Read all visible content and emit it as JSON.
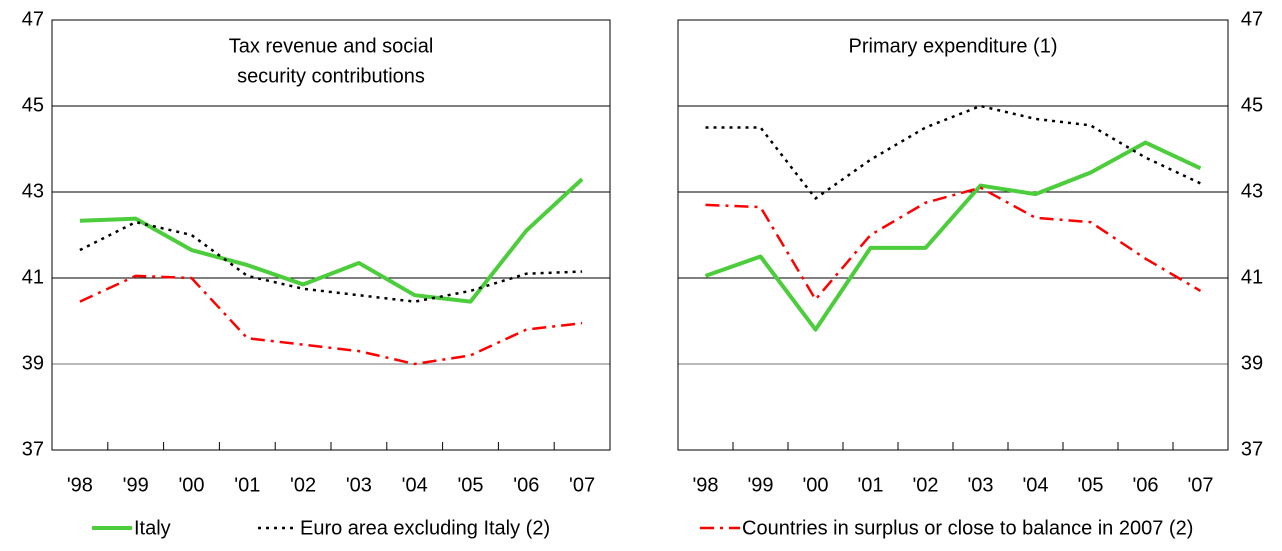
{
  "chart_data": [
    {
      "type": "line",
      "title": [
        "Tax revenue and social",
        "security contributions"
      ],
      "categories": [
        "'98",
        "'99",
        "'00",
        "'01",
        "'02",
        "'03",
        "'04",
        "'05",
        "'06",
        "'07"
      ],
      "ylim": [
        37,
        47
      ],
      "yticks": [
        37,
        39,
        41,
        43,
        45,
        47
      ],
      "grid": true,
      "yaxis_side": "left",
      "series": [
        {
          "name": "Italy",
          "color": "#4ccd3c",
          "dash": "solid",
          "values": [
            42.33,
            42.38,
            41.65,
            41.3,
            40.85,
            41.35,
            40.6,
            40.45,
            42.1,
            43.3
          ]
        },
        {
          "name": "Euro area excluding Italy (2)",
          "color": "#000000",
          "dash": "dotted",
          "values": [
            41.65,
            42.3,
            42.0,
            41.05,
            40.75,
            40.6,
            40.45,
            40.7,
            41.1,
            41.15
          ]
        },
        {
          "color": "#ff0000",
          "dash": "dashdot",
          "values": [
            40.45,
            41.05,
            41.0,
            39.6,
            39.45,
            39.3,
            39.0,
            39.2,
            39.8,
            39.95
          ]
        }
      ]
    },
    {
      "type": "line",
      "title": [
        "Primary expenditure (1)"
      ],
      "categories": [
        "'98",
        "'99",
        "'00",
        "'01",
        "'02",
        "'03",
        "'04",
        "'05",
        "'06",
        "'07"
      ],
      "ylim": [
        37,
        47
      ],
      "yticks": [
        37,
        39,
        41,
        43,
        45,
        47
      ],
      "grid": true,
      "yaxis_side": "right",
      "series": [
        {
          "color": "#4ccd3c",
          "dash": "solid",
          "values": [
            41.05,
            41.5,
            39.8,
            41.7,
            41.7,
            43.15,
            42.95,
            43.45,
            44.15,
            43.55
          ]
        },
        {
          "color": "#000000",
          "dash": "dotted",
          "values": [
            44.5,
            44.5,
            42.85,
            43.75,
            44.5,
            45.0,
            44.7,
            44.55,
            43.8,
            43.2
          ]
        },
        {
          "name": "Countries in surplus or close to balance in 2007 (2)",
          "color": "#ff0000",
          "dash": "dashdot",
          "values": [
            42.7,
            42.65,
            40.5,
            42.0,
            42.75,
            43.1,
            42.4,
            42.3,
            41.45,
            40.7
          ]
        }
      ]
    }
  ]
}
